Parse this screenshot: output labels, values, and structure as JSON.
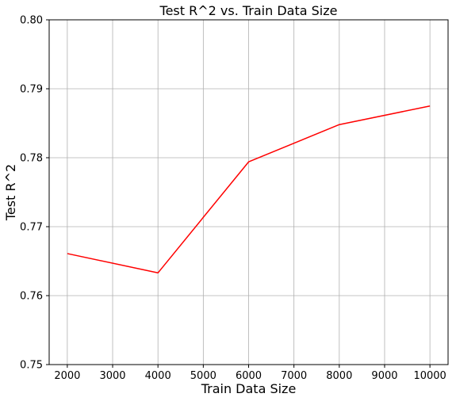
{
  "chart_data": {
    "type": "line",
    "title": "Test R^2 vs. Train Data Size",
    "xlabel": "Train Data Size",
    "ylabel": "Test R^2",
    "xlim": [
      1600,
      10400
    ],
    "ylim": [
      0.75,
      0.8
    ],
    "xticks": [
      2000,
      3000,
      4000,
      5000,
      6000,
      7000,
      8000,
      9000,
      10000
    ],
    "yticks": [
      0.75,
      0.76,
      0.77,
      0.78,
      0.79,
      0.8
    ],
    "ytick_labels": [
      "0.75",
      "0.76",
      "0.77",
      "0.78",
      "0.79",
      "0.80"
    ],
    "grid": true,
    "series": [
      {
        "color": "#ff0000",
        "x": [
          2000,
          4000,
          6000,
          8000,
          10000
        ],
        "y": [
          0.7661,
          0.7633,
          0.7794,
          0.7848,
          0.7875
        ]
      }
    ]
  }
}
